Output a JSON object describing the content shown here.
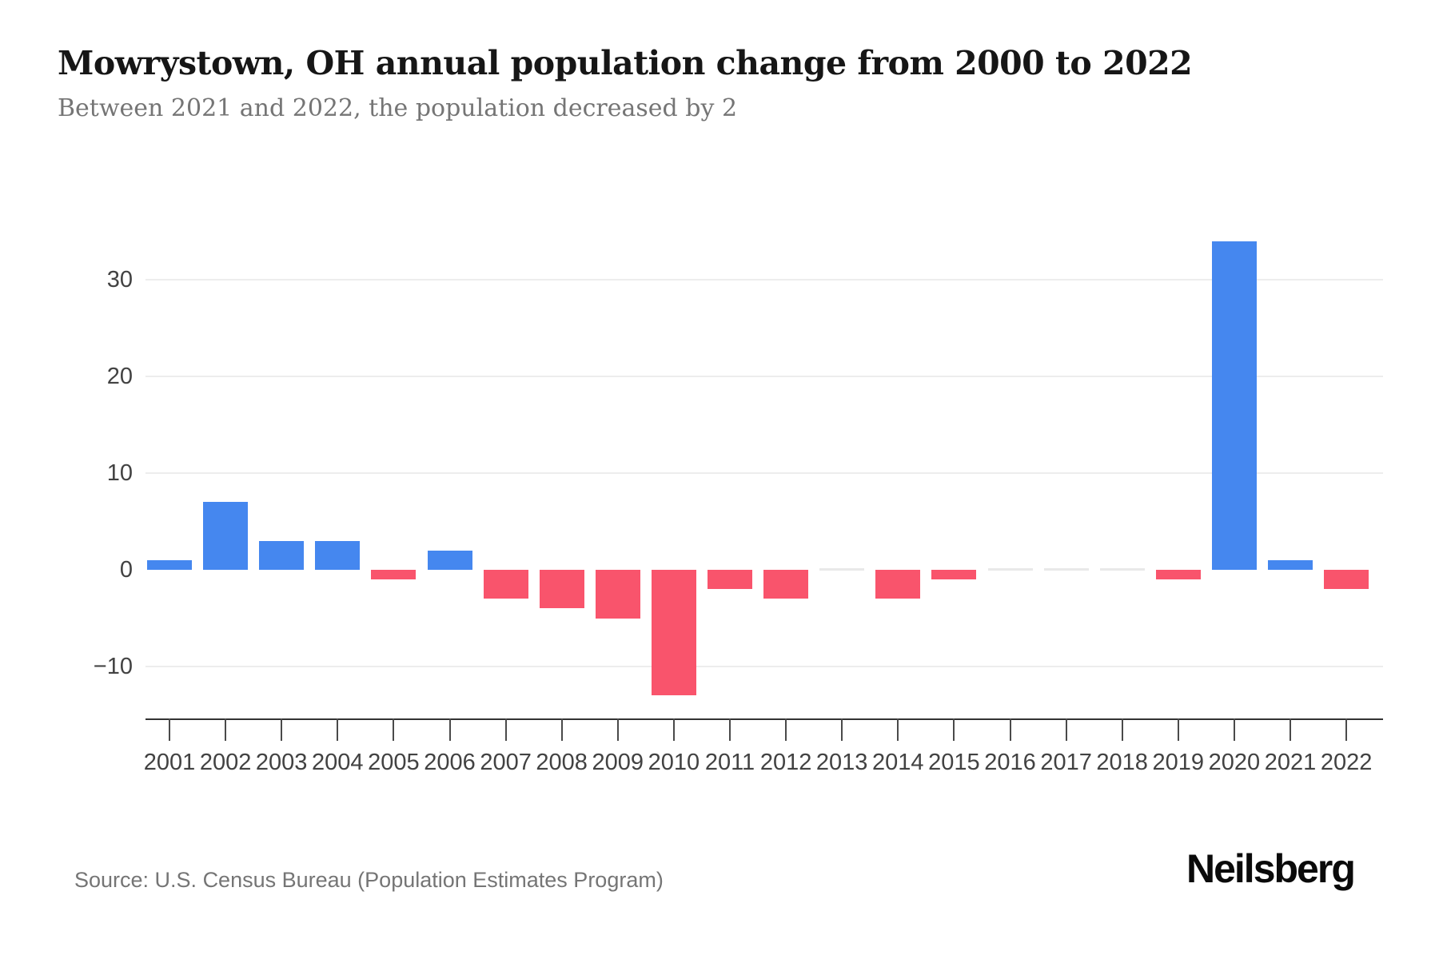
{
  "chart_data": {
    "type": "bar",
    "title": "Mowrystown, OH annual population change from 2000 to 2022",
    "subtitle": "Between 2021 and 2022, the population decreased by 2",
    "categories": [
      "2001",
      "2002",
      "2003",
      "2004",
      "2005",
      "2006",
      "2007",
      "2008",
      "2009",
      "2010",
      "2011",
      "2012",
      "2013",
      "2014",
      "2015",
      "2016",
      "2017",
      "2018",
      "2019",
      "2020",
      "2021",
      "2022"
    ],
    "values": [
      1,
      7,
      3,
      3,
      -1,
      2,
      -3,
      -4,
      -5,
      -13,
      -2,
      -3,
      0,
      -3,
      -1,
      0,
      0,
      0,
      -1,
      34,
      1,
      -2
    ],
    "xlabel": "",
    "ylabel": "",
    "y_ticks": [
      30,
      20,
      10,
      0,
      -10
    ],
    "grid_values": [
      30,
      20,
      10,
      -10
    ],
    "ylim": [
      -15.5,
      38
    ],
    "legend": "none",
    "colors": {
      "positive": "#4587EF",
      "negative": "#F9546C",
      "zero_bar": "#e9e9e9",
      "gridline": "#ededed",
      "axis": "#333333",
      "label": "#424242"
    }
  },
  "footer": {
    "source": "Source: U.S. Census Bureau (Population Estimates Program)",
    "brand": "Neilsberg"
  }
}
